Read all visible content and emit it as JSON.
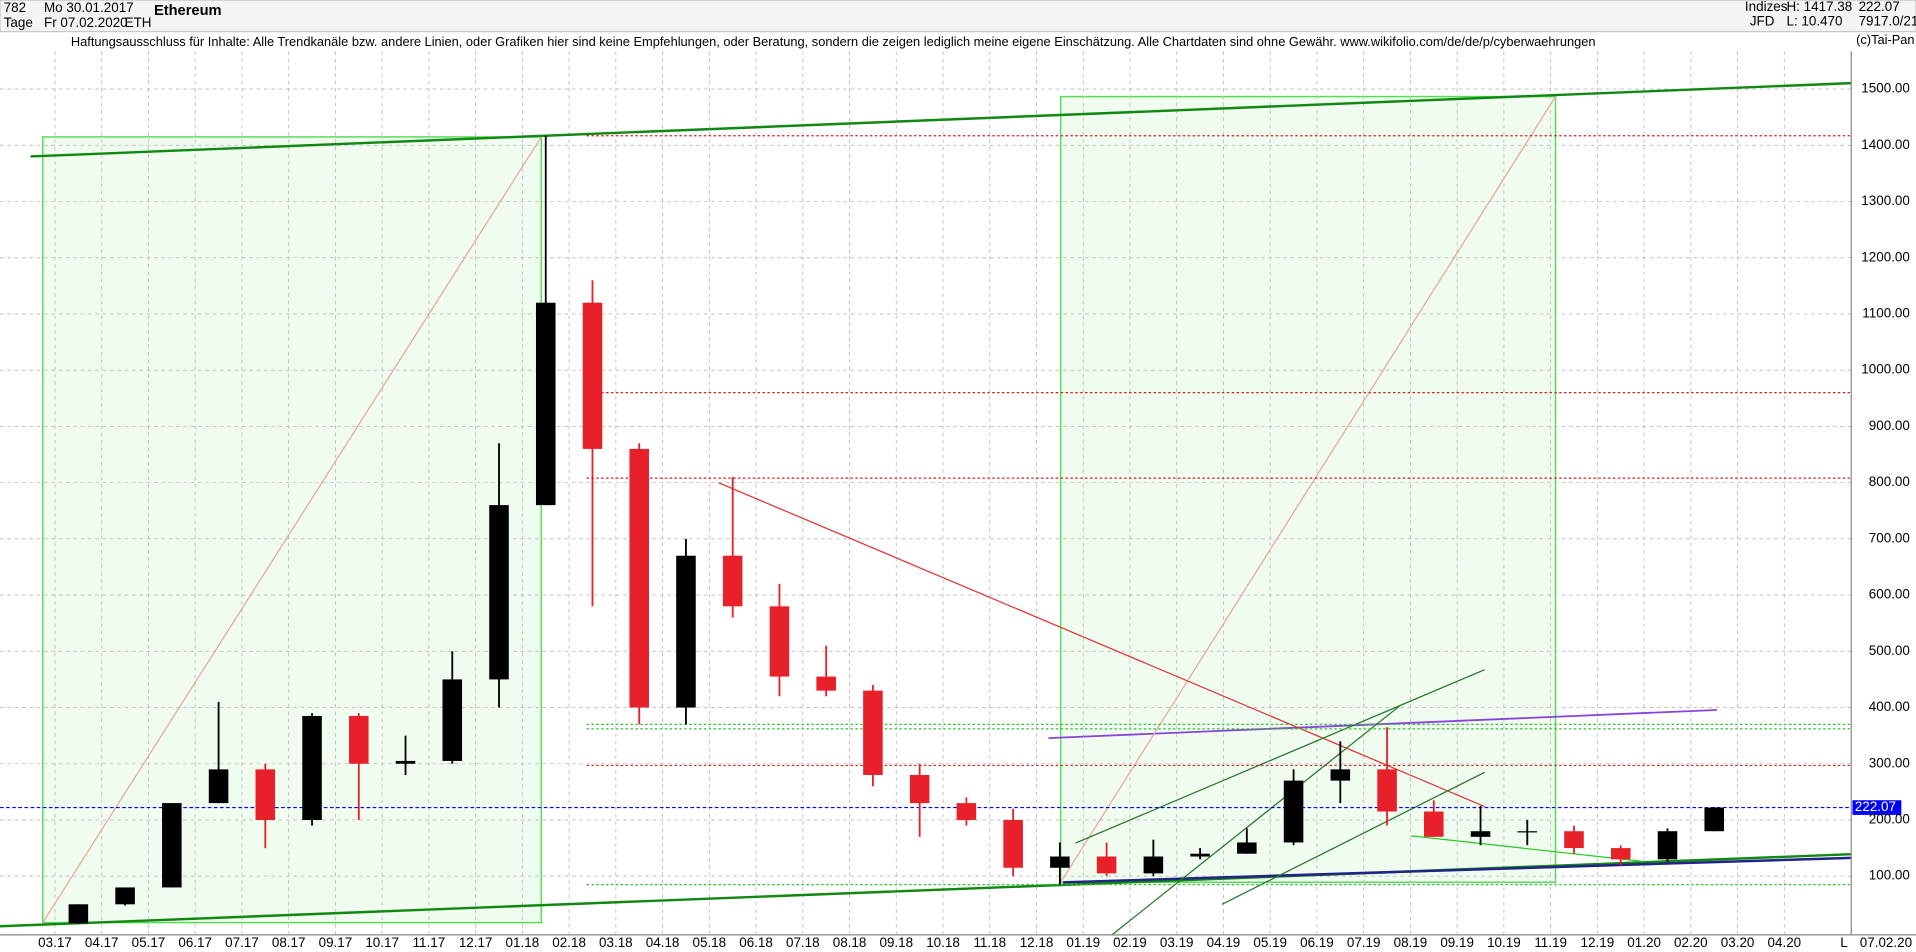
{
  "header": {
    "period": "782",
    "start": "Mo 30.01.2017",
    "unit": "Tage",
    "end": "Fr 07.02.2020",
    "symbol": "ETH",
    "group": "Indizes",
    "source": "JFD",
    "high": "H: 1417.38",
    "low": "L: 10.470",
    "ref": "7917.0/21",
    "disclaimer": "Haftungsausschluss für Inhalte: Alle Trendkanäle bzw. andere Linien, oder Grafiken hier sind keine Empfehlungen, oder Beratung, sondern die zeigen lediglich meine eigene Einschätzung. Alle Chartdaten sind ohne Gewähr.  www.wikifolio.com/de/de/p/cyberwaehrungen",
    "copyright": "(c)Tai-Pan",
    "last_date": "07.02.20",
    "scale_mode": "L"
  },
  "chart_data": {
    "type": "candlestick",
    "title": "Ethereum",
    "categories": [
      "03.17",
      "04.17",
      "05.17",
      "06.17",
      "07.17",
      "08.17",
      "09.17",
      "10.17",
      "11.17",
      "12.17",
      "01.18",
      "02.18",
      "03.18",
      "04.18",
      "05.18",
      "06.18",
      "07.18",
      "08.18",
      "09.18",
      "10.18",
      "11.18",
      "12.18",
      "01.19",
      "02.19",
      "03.19",
      "04.19",
      "05.19",
      "06.19",
      "07.19",
      "08.19",
      "09.19",
      "10.19",
      "11.19",
      "12.19",
      "01.20",
      "02.20",
      "03.20",
      "04.20"
    ],
    "open": [
      16,
      50,
      80,
      230,
      290,
      200,
      385,
      300,
      305,
      450,
      760,
      1120,
      860,
      400,
      670,
      580,
      455,
      430,
      280,
      230,
      200,
      115,
      135,
      105,
      135,
      140,
      160,
      270,
      290,
      215,
      170,
      180,
      180,
      150,
      130,
      180,
      null,
      null
    ],
    "high": [
      50,
      80,
      230,
      410,
      300,
      390,
      390,
      350,
      500,
      870,
      1417,
      1160,
      870,
      700,
      810,
      620,
      510,
      440,
      300,
      240,
      220,
      160,
      160,
      165,
      150,
      185,
      290,
      340,
      365,
      235,
      225,
      200,
      190,
      155,
      185,
      223,
      null,
      null
    ],
    "low": [
      15,
      48,
      80,
      230,
      150,
      190,
      200,
      280,
      300,
      400,
      760,
      580,
      370,
      370,
      560,
      420,
      420,
      260,
      170,
      190,
      100,
      85,
      100,
      100,
      130,
      140,
      155,
      230,
      190,
      170,
      155,
      155,
      140,
      120,
      125,
      180,
      null,
      null
    ],
    "close": [
      50,
      80,
      230,
      290,
      200,
      385,
      300,
      305,
      450,
      760,
      1120,
      860,
      400,
      670,
      580,
      455,
      430,
      280,
      230,
      200,
      115,
      135,
      105,
      135,
      140,
      160,
      270,
      290,
      215,
      170,
      180,
      180,
      150,
      130,
      180,
      222,
      null,
      null
    ],
    "up_color": "#000000",
    "down_color": "#e8202a",
    "ylim": [
      -4.3,
      1567
    ],
    "yticks": [
      {
        "value": 100,
        "label": "100.00"
      },
      {
        "value": 200,
        "label": "200.00"
      },
      {
        "value": 300,
        "label": "300.00"
      },
      {
        "value": 400,
        "label": "400.00"
      },
      {
        "value": 500,
        "label": "500.00"
      },
      {
        "value": 600,
        "label": "600.00"
      },
      {
        "value": 700,
        "label": "700.00"
      },
      {
        "value": 800,
        "label": "800.00"
      },
      {
        "value": 900,
        "label": "900.00"
      },
      {
        "value": 1000,
        "label": "1000.00"
      },
      {
        "value": 1100,
        "label": "1100.00"
      },
      {
        "value": 1200,
        "label": "1200.00"
      },
      {
        "value": 1300,
        "label": "1300.00"
      },
      {
        "value": 1400,
        "label": "1400.00"
      },
      {
        "value": 1500,
        "label": "1500.00"
      }
    ],
    "grid": true,
    "last_price": 222.07,
    "last_color": "#0000ff",
    "hlines": [
      {
        "value": 1417,
        "color": "#d02020"
      },
      {
        "value": 960,
        "color": "#d02020"
      },
      {
        "value": 808,
        "color": "#d02020"
      },
      {
        "value": 297,
        "color": "#d02020"
      },
      {
        "value": 370,
        "color": "#30c030"
      },
      {
        "value": 362,
        "color": "#30c030"
      },
      {
        "value": 85,
        "color": "#30c030"
      }
    ]
  }
}
